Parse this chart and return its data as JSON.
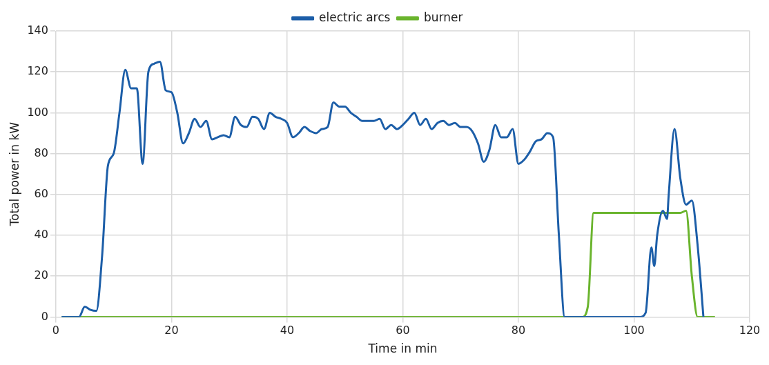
{
  "chart_data": {
    "type": "line",
    "xlabel": "Time in min",
    "ylabel": "Total power in kW",
    "xlim": [
      0,
      120
    ],
    "xticks": [
      0,
      20,
      40,
      60,
      80,
      100,
      120
    ],
    "ylim": [
      0,
      140
    ],
    "yticks": [
      0,
      20,
      40,
      60,
      80,
      100,
      120,
      140
    ],
    "grid": true,
    "legend": "top",
    "marker": "none",
    "line_style": "solid",
    "series": [
      {
        "name": "electric arcs",
        "color": "#1c5ea8",
        "x": [
          1,
          4,
          5,
          6,
          7,
          8,
          9,
          10,
          11,
          12,
          13,
          14,
          15,
          16,
          17,
          18,
          19,
          20,
          21,
          22,
          23,
          24,
          25,
          26,
          27,
          28,
          29,
          30,
          31,
          32,
          33,
          34,
          35,
          36,
          37,
          38,
          39,
          40,
          41,
          42,
          43,
          44,
          45,
          46,
          47,
          48,
          49,
          50,
          51,
          52,
          53,
          54,
          55,
          56,
          57,
          58,
          59,
          60,
          61,
          62,
          63,
          64,
          65,
          66,
          67,
          68,
          69,
          70,
          71,
          72,
          73,
          74,
          75,
          76,
          77,
          78,
          79,
          80,
          81,
          82,
          83,
          84,
          85,
          86,
          87,
          88,
          95,
          101,
          102,
          103,
          103.5,
          104,
          105,
          105.7,
          106,
          107,
          108,
          109,
          110,
          111,
          112
        ],
        "values": [
          0,
          0,
          5,
          3.5,
          3,
          30,
          74,
          80,
          100,
          121,
          112,
          112,
          75,
          120,
          124,
          125,
          111,
          110,
          100,
          85,
          90,
          97,
          93,
          96,
          87,
          88,
          89,
          88,
          98,
          94,
          93,
          98,
          97,
          92,
          100,
          98,
          97,
          95,
          88,
          90,
          93,
          91,
          90,
          92,
          93,
          105,
          103,
          103,
          100,
          98,
          96,
          96,
          96,
          97,
          92,
          94,
          92,
          94,
          97,
          100,
          94,
          97,
          92,
          95,
          96,
          94,
          95,
          93,
          93,
          91,
          85,
          76,
          82,
          94,
          88,
          88,
          92,
          75,
          77,
          81,
          86,
          87,
          90,
          88,
          40,
          0,
          0,
          0,
          2,
          34,
          25,
          40,
          52,
          48,
          60,
          92,
          68,
          55,
          57,
          35,
          0
        ]
      },
      {
        "name": "burner",
        "color": "#6ab42d",
        "x": [
          1,
          50,
          91,
          92,
          93,
          94,
          100,
          108,
          109,
          110,
          111,
          114
        ],
        "values": [
          0,
          0,
          0,
          5,
          51,
          51,
          51,
          51,
          52,
          20,
          0,
          0
        ]
      }
    ]
  }
}
